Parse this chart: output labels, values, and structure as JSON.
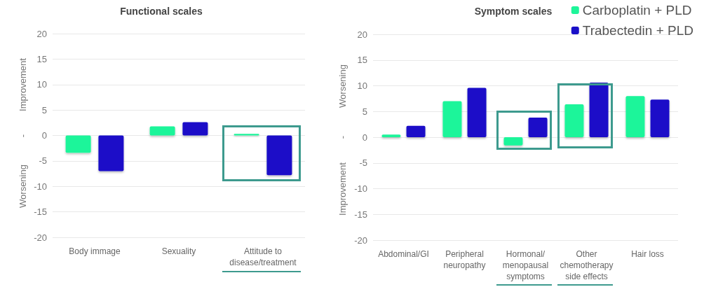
{
  "chart_data": [
    {
      "type": "bar",
      "title": "Functional scales",
      "categories": [
        "Body immage",
        "Sexuality",
        "Attitude to\ndisease/treatment"
      ],
      "series": [
        {
          "color": "#1ef59a",
          "values": [
            -3.4,
            1.8,
            0.3
          ]
        },
        {
          "color": "#1a10c8",
          "values": [
            -7.0,
            2.6,
            -7.8
          ]
        }
      ],
      "ylim": [
        -20,
        20
      ],
      "yticks": [
        -20,
        -15,
        -10,
        -5,
        0,
        5,
        10,
        15,
        20
      ],
      "grid": "y",
      "legend": false,
      "annotations": [
        "Improvement",
        "-",
        "Worsening"
      ]
    },
    {
      "type": "bar",
      "title": "Symptom scales",
      "categories": [
        "Abdominal/GI",
        "Peripheral\nneuropathy",
        "Hormonal/\nmenopausal\nsymptoms",
        "Other\nchemotherapy\nside effects",
        "Hair loss"
      ],
      "series": [
        {
          "name": "Carboplatin + PLD",
          "color": "#1ef59a",
          "values": [
            0.5,
            7.0,
            -1.6,
            6.4,
            8.0
          ]
        },
        {
          "name": "Trabectedin + PLD",
          "color": "#1a10c8",
          "values": [
            2.2,
            9.6,
            3.8,
            10.6,
            7.3
          ]
        }
      ],
      "ylim": [
        -20,
        20
      ],
      "yticks": [
        -20,
        -15,
        -10,
        -5,
        0,
        5,
        10,
        15,
        20
      ],
      "grid": "y",
      "legend": "top right",
      "annotations": [
        "Worsening",
        "-",
        "Improvement"
      ]
    }
  ]
}
